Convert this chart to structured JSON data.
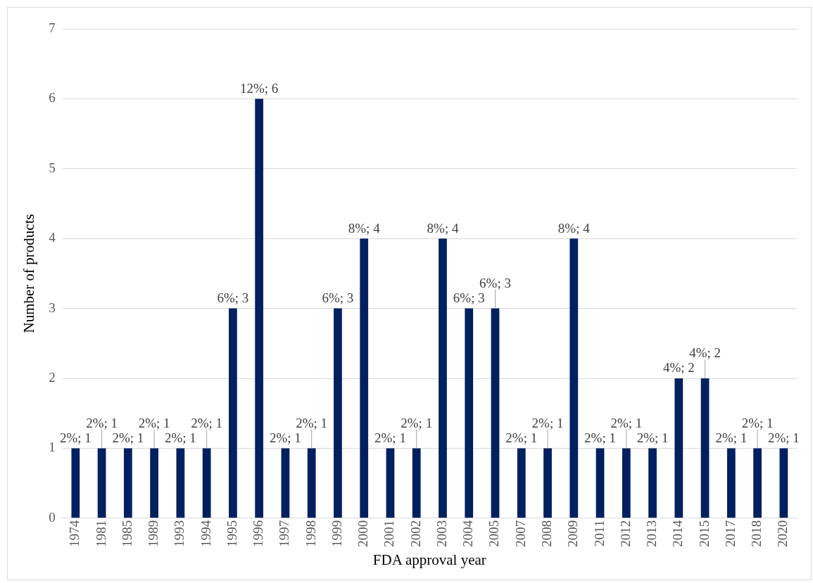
{
  "chart_data": {
    "type": "bar",
    "xlabel": "FDA approval year",
    "ylabel": "Number of products",
    "categories": [
      "1974",
      "1981",
      "1985",
      "1989",
      "1993",
      "1994",
      "1995",
      "1996",
      "1997",
      "1998",
      "1999",
      "2000",
      "2001",
      "2002",
      "2003",
      "2004",
      "2005",
      "2007",
      "2008",
      "2009",
      "2011",
      "2012",
      "2013",
      "2014",
      "2015",
      "2017",
      "2018",
      "2020"
    ],
    "values": [
      1,
      1,
      1,
      1,
      1,
      1,
      3,
      6,
      1,
      1,
      3,
      4,
      1,
      1,
      4,
      3,
      3,
      1,
      1,
      4,
      1,
      1,
      1,
      2,
      2,
      1,
      1,
      1
    ],
    "value_labels": [
      "2%; 1",
      "2%; 1",
      "2%; 1",
      "2%; 1",
      "2%; 1",
      "2%; 1",
      "6%; 3",
      "12%; 6",
      "2%; 1",
      "2%; 1",
      "6%; 3",
      "8%; 4",
      "2%; 1",
      "2%; 1",
      "8%; 4",
      "6%; 3",
      "6%; 3",
      "2%; 1",
      "2%; 1",
      "8%; 4",
      "2%; 1",
      "2%; 1",
      "2%; 1",
      "4%; 2",
      "4%; 2",
      "2%; 1",
      "2%; 1",
      "2%; 1"
    ],
    "color": "#002060",
    "ylim": [
      0,
      7
    ],
    "yticks": [
      0,
      1,
      2,
      3,
      4,
      5,
      6,
      7
    ],
    "grid": "y",
    "legend": false
  }
}
